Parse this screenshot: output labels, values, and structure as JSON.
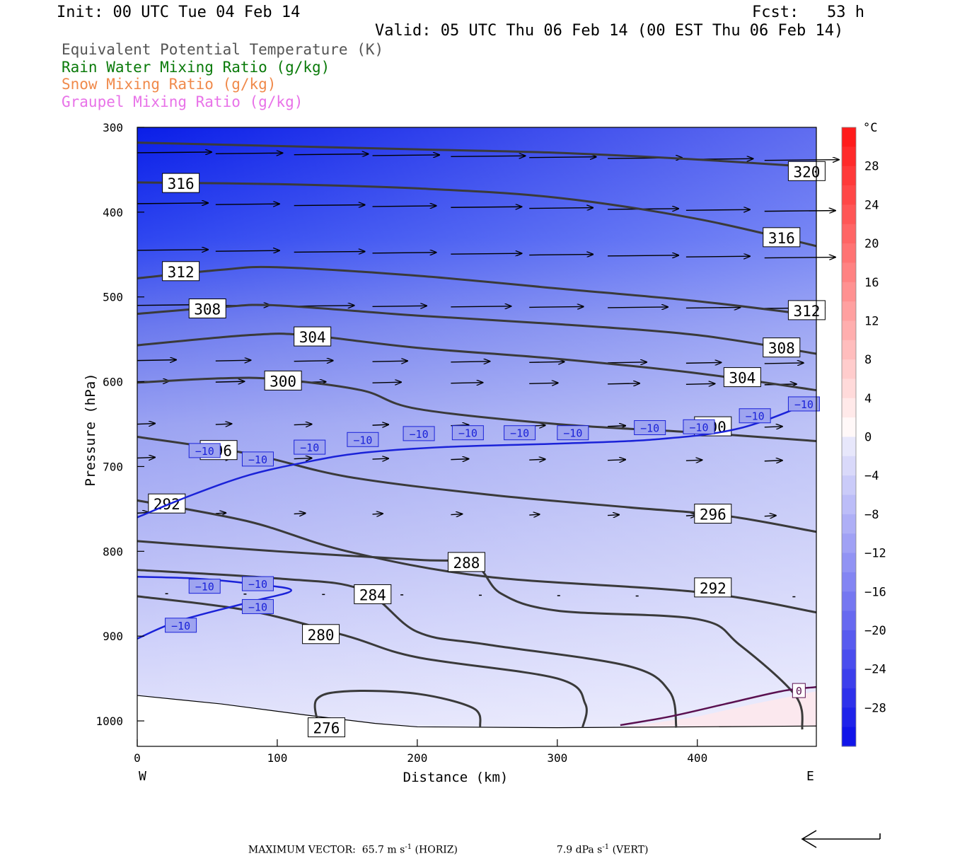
{
  "header": {
    "init": "Init: 00 UTC Tue 04 Feb 14",
    "fcst": "Fcst:   53 h",
    "valid": "Valid: 05 UTC Thu 06 Feb 14 (00 EST Thu 06 Feb 14)"
  },
  "legend": [
    {
      "label": "Equivalent Potential Temperature (K)",
      "color": "#555555"
    },
    {
      "label": "Rain Water Mixing Ratio (g/kg)",
      "color": "#0a7a0a"
    },
    {
      "label": "Snow Mixing Ratio (g/kg)",
      "color": "#f08a4b"
    },
    {
      "label": "Graupel Mixing Ratio (g/kg)",
      "color": "#e872e8"
    }
  ],
  "chart_data": {
    "type": "contour",
    "xlabel": "Distance (km)",
    "ylabel": "Pressure (hPa)",
    "xlim": [
      0,
      485
    ],
    "ylim": [
      1030,
      300
    ],
    "x_ticks": [
      0,
      100,
      200,
      300,
      400
    ],
    "y_ticks": [
      300,
      400,
      500,
      600,
      700,
      800,
      900,
      1000
    ],
    "left_end_label": "W",
    "right_end_label": "E",
    "colorbar": {
      "unit": "°C",
      "range": [
        -32,
        32
      ],
      "tick_labels": [
        "28",
        "24",
        "20",
        "16",
        "12",
        "8",
        "4",
        "0",
        "−4",
        "−8",
        "−12",
        "−16",
        "−20",
        "−24",
        "−28"
      ],
      "tick_values": [
        28,
        24,
        20,
        16,
        12,
        8,
        4,
        0,
        -4,
        -8,
        -12,
        -16,
        -20,
        -24,
        -28
      ]
    },
    "theta_e_contours": [
      {
        "label": "320",
        "points": [
          [
            0,
            318
          ],
          [
            100,
            322
          ],
          [
            200,
            326
          ],
          [
            300,
            330
          ],
          [
            400,
            338
          ],
          [
            485,
            347
          ]
        ],
        "label_at": [
          465,
          352
        ]
      },
      {
        "label": "316",
        "points": [
          [
            0,
            365
          ],
          [
            100,
            367
          ],
          [
            200,
            372
          ],
          [
            300,
            383
          ],
          [
            400,
            408
          ],
          [
            485,
            440
          ]
        ],
        "label_at": [
          18,
          366
        ]
      },
      {
        "label": "316",
        "points": [],
        "label_at": [
          447,
          430
        ]
      },
      {
        "label": "312",
        "points": [
          [
            0,
            478
          ],
          [
            60,
            468
          ],
          [
            100,
            465
          ],
          [
            200,
            475
          ],
          [
            300,
            490
          ],
          [
            400,
            505
          ],
          [
            485,
            522
          ]
        ],
        "label_at": [
          18,
          470
        ]
      },
      {
        "label": "312",
        "points": [],
        "label_at": [
          465,
          516
        ]
      },
      {
        "label": "308",
        "points": [
          [
            0,
            520
          ],
          [
            60,
            512
          ],
          [
            100,
            510
          ],
          [
            200,
            522
          ],
          [
            300,
            532
          ],
          [
            400,
            545
          ],
          [
            485,
            567
          ]
        ],
        "label_at": [
          37,
          514
        ]
      },
      {
        "label": "308",
        "points": [],
        "label_at": [
          447,
          560
        ]
      },
      {
        "label": "304",
        "points": [
          [
            0,
            557
          ],
          [
            80,
            545
          ],
          [
            120,
            545
          ],
          [
            200,
            560
          ],
          [
            300,
            573
          ],
          [
            400,
            590
          ],
          [
            485,
            610
          ]
        ],
        "label_at": [
          112,
          547
        ]
      },
      {
        "label": "304",
        "points": [],
        "label_at": [
          419,
          595
        ]
      },
      {
        "label": "300",
        "points": [
          [
            0,
            601
          ],
          [
            60,
            596
          ],
          [
            100,
            597
          ],
          [
            160,
            610
          ],
          [
            200,
            632
          ],
          [
            300,
            650
          ],
          [
            400,
            660
          ],
          [
            485,
            670
          ]
        ],
        "label_at": [
          91,
          599
        ]
      },
      {
        "label": "300",
        "points": [],
        "label_at": [
          398,
          653
        ]
      },
      {
        "label": "296",
        "points": [
          [
            0,
            665
          ],
          [
            80,
            685
          ],
          [
            150,
            712
          ],
          [
            250,
            733
          ],
          [
            350,
            748
          ],
          [
            420,
            758
          ],
          [
            485,
            777
          ]
        ],
        "label_at": [
          45,
          681
        ]
      },
      {
        "label": "296",
        "points": [],
        "label_at": [
          398,
          756
        ]
      },
      {
        "label": "292",
        "points": [
          [
            0,
            740
          ],
          [
            80,
            765
          ],
          [
            150,
            800
          ],
          [
            250,
            830
          ],
          [
            400,
            848
          ],
          [
            485,
            872
          ]
        ],
        "label_at": [
          8,
          744
        ]
      },
      {
        "label": "292",
        "points": [],
        "label_at": [
          398,
          843
        ]
      },
      {
        "label": "288",
        "points": [
          [
            0,
            788
          ],
          [
            100,
            800
          ],
          [
            200,
            810
          ],
          [
            240,
            815
          ],
          [
            260,
            850
          ],
          [
            300,
            870
          ],
          [
            400,
            880
          ],
          [
            430,
            910
          ],
          [
            470,
            970
          ],
          [
            475,
            1010
          ]
        ],
        "label_at": [
          222,
          813
        ]
      },
      {
        "label": "284",
        "points": [
          [
            0,
            822
          ],
          [
            100,
            832
          ],
          [
            160,
            845
          ],
          [
            200,
            895
          ],
          [
            250,
            910
          ],
          [
            350,
            935
          ],
          [
            380,
            965
          ],
          [
            385,
            1008
          ]
        ],
        "label_at": [
          155,
          851
        ]
      },
      {
        "label": "280",
        "points": [
          [
            0,
            853
          ],
          [
            80,
            870
          ],
          [
            150,
            900
          ],
          [
            200,
            925
          ],
          [
            300,
            950
          ],
          [
            320,
            980
          ],
          [
            318,
            1008
          ]
        ],
        "label_at": [
          118,
          898
        ]
      },
      {
        "label": "276",
        "points": [
          [
            130,
            1008
          ],
          [
            128,
            975
          ],
          [
            150,
            965
          ],
          [
            200,
            968
          ],
          [
            240,
            985
          ],
          [
            245,
            1007
          ]
        ],
        "label_at": [
          122,
          1008
        ]
      }
    ],
    "temperature_minus10": {
      "label": "−10",
      "points": [
        [
          0,
          760
        ],
        [
          40,
          733
        ],
        [
          80,
          710
        ],
        [
          120,
          695
        ],
        [
          160,
          684
        ],
        [
          220,
          677
        ],
        [
          300,
          673
        ],
        [
          370,
          668
        ],
        [
          430,
          655
        ],
        [
          485,
          622
        ]
      ],
      "label_positions": [
        [
          37,
          682
        ],
        [
          75,
          692
        ],
        [
          112,
          678
        ],
        [
          150,
          669
        ],
        [
          190,
          662
        ],
        [
          225,
          661
        ],
        [
          262,
          661
        ],
        [
          300,
          661
        ],
        [
          355,
          655
        ],
        [
          390,
          654
        ],
        [
          430,
          641
        ],
        [
          465,
          627
        ]
      ],
      "lower_lobe_points": [
        [
          0,
          830
        ],
        [
          40,
          832
        ],
        [
          80,
          838
        ],
        [
          110,
          846
        ],
        [
          80,
          860
        ],
        [
          30,
          882
        ],
        [
          0,
          903
        ]
      ],
      "lower_lobe_labels": [
        [
          20,
          888
        ],
        [
          37,
          842
        ],
        [
          75,
          839
        ],
        [
          75,
          866
        ]
      ]
    },
    "zero_line": {
      "label": "0",
      "points": [
        [
          345,
          1005
        ],
        [
          380,
          995
        ],
        [
          420,
          980
        ],
        [
          460,
          965
        ],
        [
          485,
          960
        ]
      ],
      "label_at": [
        468,
        965
      ]
    },
    "max_vector": {
      "prefix": "MAXIMUM VECTOR:",
      "horiz": "65.7 m s",
      "horiz_unit": "(HORIZ)",
      "vert": "7.9 dPa s",
      "vert_unit": "(VERT)",
      "exponent": "-1"
    }
  }
}
